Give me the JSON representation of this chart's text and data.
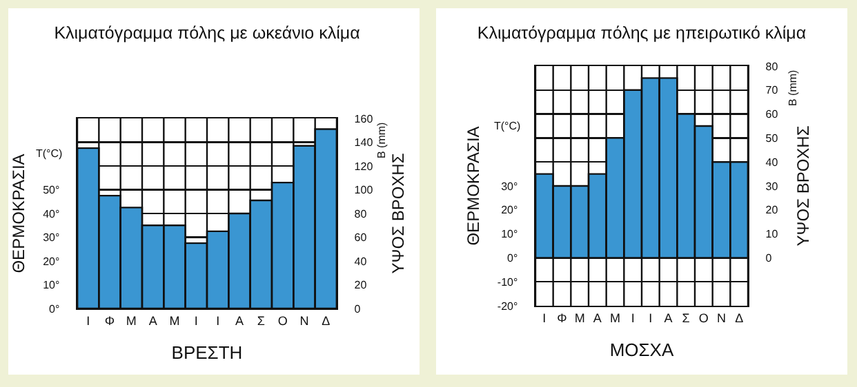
{
  "chart_data": [
    {
      "type": "bar",
      "title": "Κλιματόγραμμα πόλης με ωκεάνιο κλίμα",
      "xlabel": "ΒΡΕΣΤΗ",
      "ylabel": "ΘΕΡΜΟΚΡΑΣΙΑ",
      "y2label": "ΥΨΟΣ ΒΡΟΧΗΣ",
      "annotations": [
        "T(°C)",
        "B (mm)"
      ],
      "categories": [
        "Ι",
        "Φ",
        "Μ",
        "Α",
        "Μ",
        "Ι",
        "Ι",
        "Α",
        "Σ",
        "Ο",
        "Ν",
        "Δ"
      ],
      "series": [
        {
          "color": "#3a96d2",
          "axis": "y2",
          "values": [
            135,
            95,
            85,
            70,
            70,
            55,
            65,
            80,
            91,
            106,
            137,
            151
          ]
        }
      ],
      "ylim": [
        0,
        80
      ],
      "yticks": [
        {
          "value": 0,
          "label": "0°"
        },
        {
          "value": 10,
          "label": "10°"
        },
        {
          "value": 20,
          "label": "20°"
        },
        {
          "value": 30,
          "label": "30°"
        },
        {
          "value": 40,
          "label": "40°"
        },
        {
          "value": 50,
          "label": "50°"
        }
      ],
      "y2lim": [
        0,
        160
      ],
      "y2ticks": [
        0,
        20,
        40,
        60,
        80,
        100,
        120,
        140,
        160
      ],
      "grid": true
    },
    {
      "type": "bar",
      "title": "Κλιματόγραμμα πόλης με ηπειρωτικό κλίμα",
      "xlabel": "ΜΟΣΧΑ",
      "ylabel": "ΘΕΡΜΟΚΡΑΣΙΑ",
      "y2label": "ΥΨΟΣ ΒΡΟΧΗΣ",
      "annotations": [
        "T(°C)",
        "B (mm)"
      ],
      "categories": [
        "Ι",
        "Φ",
        "Μ",
        "Α",
        "Μ",
        "Ι",
        "Ι",
        "Α",
        "Σ",
        "Ο",
        "Ν",
        "Δ"
      ],
      "series": [
        {
          "color": "#3a96d2",
          "axis": "y2",
          "values": [
            35,
            30,
            30,
            35,
            50,
            70,
            75,
            75,
            60,
            55,
            40,
            40
          ]
        }
      ],
      "ylim": [
        -20,
        80
      ],
      "yticks": [
        {
          "value": -20,
          "label": "-20°"
        },
        {
          "value": -10,
          "label": "-10°"
        },
        {
          "value": 0,
          "label": "0°"
        },
        {
          "value": 10,
          "label": "10°"
        },
        {
          "value": 20,
          "label": "20°"
        },
        {
          "value": 30,
          "label": "30°"
        }
      ],
      "y2lim": [
        -20,
        80
      ],
      "y2ticks": [
        0,
        10,
        20,
        30,
        40,
        50,
        60,
        70,
        80
      ],
      "grid": true
    }
  ]
}
